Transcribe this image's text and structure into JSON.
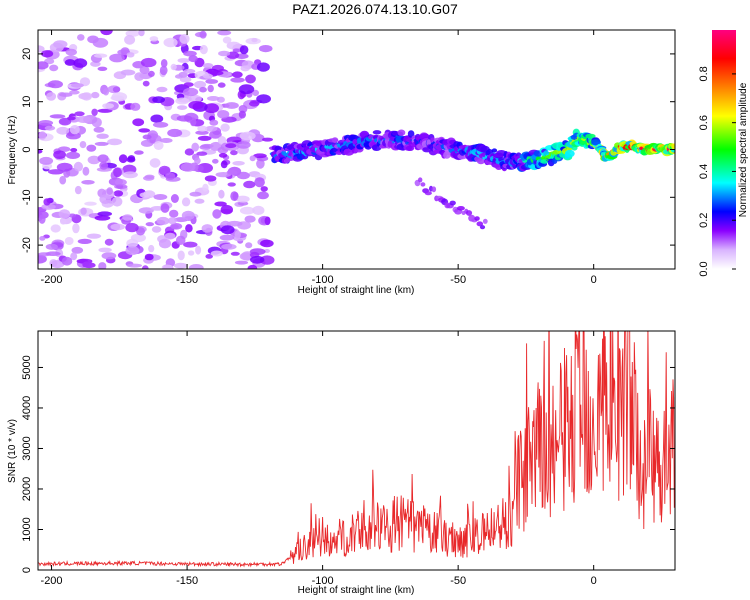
{
  "chart_data": [
    {
      "type": "heatmap",
      "title": "PAZ1.2026.074.13.10.G07",
      "xlabel": "Height of straight line (km)",
      "ylabel": "Frequency (Hz)",
      "xlim": [
        -205,
        30
      ],
      "ylim": [
        -25,
        25
      ],
      "xticks": [
        -200,
        -150,
        -100,
        -50,
        0
      ],
      "yticks": [
        -20,
        -10,
        0,
        10,
        20
      ],
      "colorbar": {
        "label": "Normalized spectral amplitude",
        "range": [
          0,
          0.98
        ],
        "ticks": [
          0.0,
          0.2,
          0.4,
          0.6,
          0.8
        ],
        "tick_labels": [
          "0.0",
          "0.2",
          "0.4",
          "0.6",
          "0.8"
        ],
        "colors": [
          "#ffffff",
          "#8b00ff",
          "#0000ff",
          "#00ffff",
          "#00ff00",
          "#ffff00",
          "#ff8000",
          "#ff0000",
          "#ff0080"
        ]
      },
      "signal_ridge": {
        "height_km": [
          -115,
          -100,
          -90,
          -80,
          -70,
          -60,
          -50,
          -40,
          -30,
          -20,
          -10,
          -5,
          0,
          5,
          10,
          15,
          20,
          30
        ],
        "frequency_hz": [
          -1,
          0,
          1,
          2,
          2,
          1,
          0,
          -1,
          -3,
          -2,
          0,
          2.5,
          1.5,
          -1.5,
          0.5,
          0.8,
          0,
          0
        ],
        "peak_amplitude": [
          0.3,
          0.35,
          0.3,
          0.3,
          0.28,
          0.25,
          0.3,
          0.35,
          0.3,
          0.5,
          0.6,
          0.6,
          0.6,
          0.7,
          0.85,
          0.9,
          0.92,
          0.95
        ]
      },
      "noise_region_km": [
        -205,
        -120
      ]
    },
    {
      "type": "line",
      "xlabel": "Height of straight line (km)",
      "ylabel": "SNR (10 * v/v)",
      "xlim": [
        -205,
        30
      ],
      "ylim": [
        0,
        5900
      ],
      "xticks": [
        -200,
        -150,
        -100,
        -50,
        0
      ],
      "yticks": [
        0,
        1000,
        2000,
        3000,
        4000,
        5000
      ],
      "color": "#e8282a",
      "series": [
        {
          "name": "SNR",
          "x": [
            -205,
            -190,
            -170,
            -150,
            -130,
            -115,
            -110,
            -105,
            -100,
            -95,
            -90,
            -85,
            -80,
            -75,
            -70,
            -65,
            -60,
            -55,
            -50,
            -45,
            -40,
            -35,
            -30,
            -28,
            -25,
            -20,
            -15,
            -10,
            -5,
            0,
            5,
            10,
            12,
            15,
            18,
            20,
            25,
            30
          ],
          "y": [
            150,
            160,
            170,
            150,
            140,
            150,
            450,
            700,
            750,
            850,
            950,
            1050,
            1150,
            1250,
            1300,
            1150,
            1050,
            900,
            850,
            850,
            1000,
            1250,
            1400,
            2400,
            2700,
            3100,
            3300,
            3900,
            4300,
            4500,
            4400,
            4500,
            5500,
            4000,
            2400,
            2900,
            3050,
            3300
          ]
        }
      ]
    }
  ]
}
